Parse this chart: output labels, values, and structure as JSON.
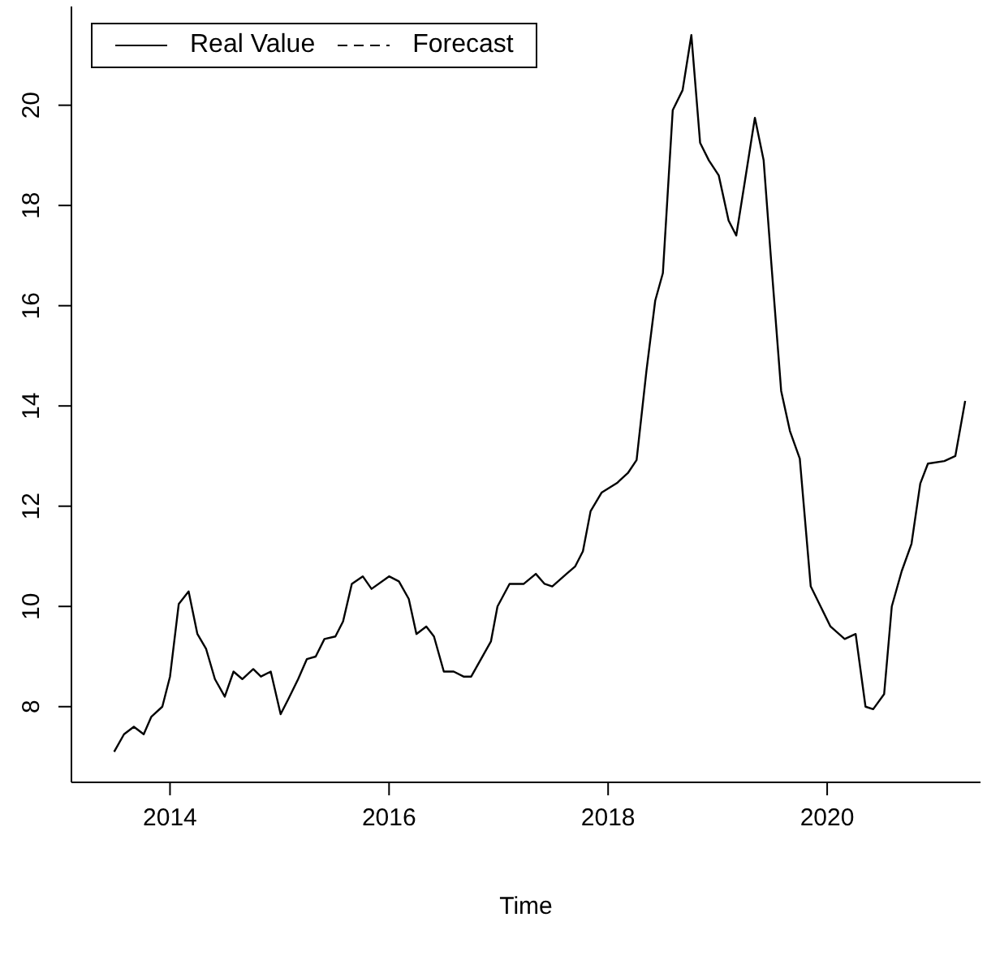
{
  "chart_data": {
    "type": "line",
    "xlabel": "Time",
    "x": [
      2013.49,
      2013.58,
      2013.67,
      2013.76,
      2013.83,
      2013.93,
      2014.0,
      2014.08,
      2014.17,
      2014.25,
      2014.33,
      2014.41,
      2014.5,
      2014.58,
      2014.66,
      2014.76,
      2014.83,
      2014.92,
      2015.01,
      2015.08,
      2015.17,
      2015.25,
      2015.33,
      2015.41,
      2015.51,
      2015.58,
      2015.66,
      2015.76,
      2015.84,
      2016.0,
      2016.09,
      2016.18,
      2016.25,
      2016.34,
      2016.41,
      2016.5,
      2016.59,
      2016.68,
      2016.75,
      2016.93,
      2016.99,
      2017.1,
      2017.23,
      2017.34,
      2017.42,
      2017.49,
      2017.62,
      2017.7,
      2017.77,
      2017.84,
      2017.94,
      2018.08,
      2018.18,
      2018.26,
      2018.35,
      2018.43,
      2018.5,
      2018.59,
      2018.68,
      2018.76,
      2018.84,
      2018.92,
      2019.01,
      2019.1,
      2019.17,
      2019.25,
      2019.34,
      2019.42,
      2019.49,
      2019.58,
      2019.66,
      2019.75,
      2019.85,
      2019.94,
      2020.03,
      2020.16,
      2020.26,
      2020.35,
      2020.42,
      2020.52,
      2020.59,
      2020.68,
      2020.77,
      2020.85,
      2020.92,
      2021.07,
      2021.17,
      2021.26
    ],
    "series": [
      {
        "name": "Real Value",
        "color": "#000000",
        "line_style": "solid",
        "values": [
          7.1,
          7.45,
          7.6,
          7.45,
          7.8,
          8.0,
          8.6,
          10.05,
          10.3,
          9.45,
          9.15,
          8.55,
          8.2,
          8.7,
          8.55,
          8.75,
          8.6,
          8.7,
          7.85,
          8.15,
          8.55,
          8.95,
          9.0,
          9.35,
          9.4,
          9.7,
          10.45,
          10.6,
          10.35,
          10.6,
          10.5,
          10.15,
          9.45,
          9.6,
          9.4,
          8.7,
          8.7,
          8.6,
          8.6,
          9.3,
          10.0,
          10.45,
          10.45,
          10.65,
          10.45,
          10.4,
          10.65,
          10.8,
          11.1,
          11.9,
          12.27,
          12.46,
          12.66,
          12.92,
          14.7,
          16.1,
          16.65,
          19.9,
          20.3,
          21.4,
          19.25,
          18.9,
          18.6,
          17.7,
          17.4,
          18.5,
          19.75,
          18.9,
          16.85,
          14.3,
          13.5,
          12.95,
          10.4,
          10.0,
          9.6,
          9.35,
          9.45,
          8.0,
          7.95,
          8.25,
          10.0,
          10.7,
          11.25,
          12.45,
          12.85,
          12.9,
          13.0,
          14.1
        ]
      },
      {
        "name": "Forecast",
        "color": "#000000",
        "line_style": "dashed",
        "values": [
          null,
          null,
          null,
          null,
          null,
          null,
          null,
          null,
          null,
          null,
          null,
          null,
          null,
          null,
          null,
          null,
          null,
          null,
          null,
          null,
          null,
          null,
          null,
          null,
          null,
          null,
          null,
          null,
          null,
          null,
          null,
          null,
          null,
          null,
          null,
          null,
          null,
          null,
          null,
          null,
          null,
          null,
          null,
          null,
          null,
          null,
          null,
          null,
          null,
          null,
          null,
          null,
          null,
          null,
          null,
          null,
          null,
          null,
          null,
          null,
          null,
          null,
          null,
          null,
          null,
          null,
          null,
          null,
          null,
          null,
          null,
          null,
          null,
          null,
          null,
          null,
          null,
          null,
          null,
          null,
          null,
          null,
          null,
          null,
          null,
          null,
          null,
          null
        ]
      }
    ],
    "xlim": [
      2013.1,
      2021.4
    ],
    "xticks": [
      2014,
      2016,
      2018,
      2020
    ],
    "ylim": [
      6.49,
      21.97
    ],
    "yticks": [
      8,
      10,
      12,
      14,
      16,
      18,
      20
    ],
    "legend": "top left",
    "marker": "none",
    "grid": false
  }
}
